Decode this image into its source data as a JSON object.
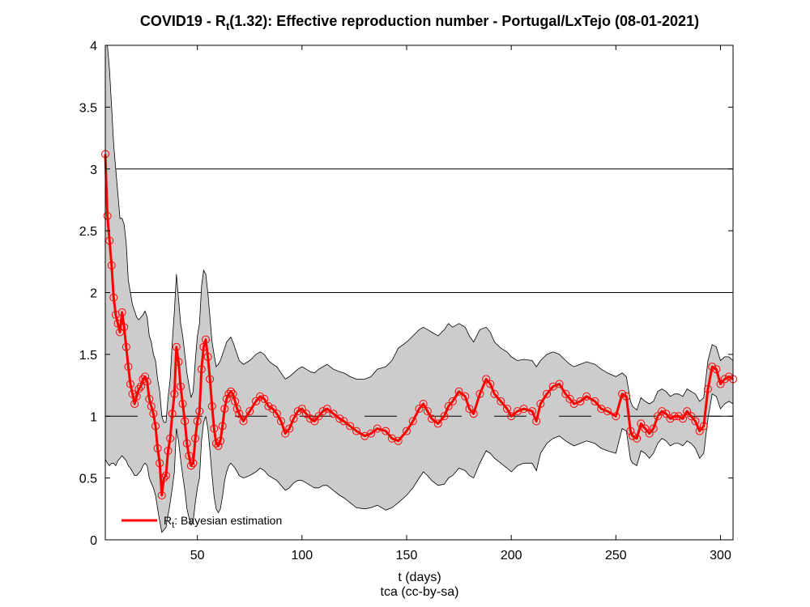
{
  "chart_data": {
    "type": "line",
    "title_prefix": "COVID19 - R",
    "title_sub": "t",
    "title_suffix": "(1.32): Effective reproduction number - Portugal/LxTejo (08-01-2021)",
    "xlabel": "t (days)",
    "caption": "tca (cc-by-sa)",
    "xlim": [
      6,
      306
    ],
    "ylim": [
      0,
      4
    ],
    "xticks": [
      50,
      100,
      150,
      200,
      250,
      300
    ],
    "yticks": [
      0,
      0.5,
      1,
      1.5,
      2,
      2.5,
      3,
      3.5,
      4
    ],
    "xtick_labels": [
      "50",
      "100",
      "150",
      "200",
      "250",
      "300"
    ],
    "ytick_labels": [
      "0",
      "0.5",
      "1",
      "1.5",
      "2",
      "2.5",
      "3",
      "3.5",
      "4"
    ],
    "ygrid": [
      1,
      2,
      3
    ],
    "legend": {
      "position": "bottom-left",
      "label_main": "R",
      "label_sub": "t",
      "label_rest": ": Bayesian estimation"
    },
    "colors": {
      "estimate": "#ff0000",
      "band": "#cccccc",
      "band_edge": "#000000"
    },
    "series": [
      {
        "name": "Rt: Bayesian estimation",
        "x": [
          6,
          7,
          8,
          9,
          10,
          11,
          12,
          13,
          14,
          15,
          16,
          17,
          18,
          19,
          20,
          21,
          22,
          23,
          24,
          25,
          26,
          27,
          28,
          29,
          30,
          31,
          32,
          33,
          34,
          35,
          36,
          37,
          38,
          39,
          40,
          41,
          42,
          43,
          44,
          45,
          46,
          47,
          48,
          49,
          50,
          51,
          52,
          53,
          54,
          55,
          56,
          57,
          58,
          59,
          60,
          61,
          62,
          63,
          64,
          65,
          66,
          67,
          68,
          69,
          70,
          72,
          75,
          78,
          80,
          82,
          84,
          86,
          88,
          90,
          92,
          94,
          96,
          98,
          100,
          102,
          104,
          106,
          108,
          110,
          112,
          115,
          118,
          120,
          123,
          126,
          130,
          133,
          136,
          140,
          143,
          146,
          150,
          153,
          156,
          158,
          160,
          162,
          165,
          168,
          170,
          172,
          175,
          178,
          180,
          182,
          185,
          188,
          190,
          192,
          195,
          198,
          200,
          203,
          206,
          210,
          212,
          214,
          217,
          220,
          223,
          226,
          228,
          230,
          233,
          236,
          240,
          243,
          246,
          250,
          253,
          255,
          257,
          258,
          260,
          262,
          264,
          266,
          268,
          270,
          272,
          274,
          276,
          278,
          280,
          282,
          284,
          286,
          288,
          290,
          292,
          294,
          296,
          298,
          300,
          302,
          304,
          306
        ],
        "y": [
          3.12,
          2.62,
          2.42,
          2.22,
          1.96,
          1.82,
          1.75,
          1.68,
          1.84,
          1.72,
          1.56,
          1.4,
          1.26,
          1.18,
          1.1,
          1.16,
          1.22,
          1.24,
          1.3,
          1.32,
          1.28,
          1.14,
          1.08,
          1.02,
          0.92,
          0.74,
          0.62,
          0.36,
          0.5,
          0.52,
          0.72,
          0.82,
          1.02,
          1.18,
          1.56,
          1.44,
          1.24,
          1.1,
          0.96,
          0.78,
          0.68,
          0.6,
          0.62,
          0.82,
          0.96,
          1.04,
          1.38,
          1.56,
          1.62,
          1.48,
          1.3,
          1.08,
          0.9,
          0.78,
          0.76,
          0.8,
          0.92,
          1.06,
          1.14,
          1.18,
          1.2,
          1.18,
          1.12,
          1.06,
          1.02,
          0.96,
          1.04,
          1.12,
          1.16,
          1.14,
          1.08,
          1.06,
          1.02,
          0.96,
          0.86,
          0.9,
          0.98,
          1.04,
          1.06,
          1.02,
          0.98,
          0.96,
          1.0,
          1.04,
          1.06,
          1.02,
          0.98,
          0.96,
          0.92,
          0.88,
          0.84,
          0.86,
          0.9,
          0.88,
          0.82,
          0.8,
          0.88,
          0.96,
          1.06,
          1.1,
          1.04,
          0.98,
          0.94,
          1.0,
          1.08,
          1.12,
          1.2,
          1.16,
          1.06,
          1.02,
          1.18,
          1.3,
          1.26,
          1.18,
          1.12,
          1.06,
          1.0,
          1.04,
          1.06,
          1.04,
          0.96,
          1.1,
          1.18,
          1.24,
          1.26,
          1.18,
          1.14,
          1.1,
          1.12,
          1.16,
          1.12,
          1.06,
          1.04,
          1.0,
          1.18,
          1.16,
          0.88,
          0.84,
          0.82,
          0.94,
          0.9,
          0.86,
          0.9,
          1.0,
          1.04,
          1.02,
          0.98,
          1.0,
          1.0,
          0.98,
          1.04,
          1.0,
          0.96,
          0.88,
          0.92,
          1.22,
          1.4,
          1.38,
          1.26,
          1.3,
          1.32,
          1.3
        ],
        "upper": [
          4.0,
          4.0,
          3.8,
          3.5,
          3.2,
          3.0,
          2.8,
          2.6,
          2.6,
          2.55,
          2.4,
          2.1,
          2.0,
          1.9,
          1.85,
          1.8,
          1.78,
          1.8,
          1.82,
          1.85,
          1.8,
          1.65,
          1.6,
          1.5,
          1.45,
          1.3,
          1.2,
          1.0,
          0.95,
          0.95,
          1.15,
          1.3,
          1.6,
          1.85,
          2.15,
          1.95,
          1.75,
          1.65,
          1.5,
          1.35,
          1.25,
          1.15,
          1.2,
          1.45,
          1.65,
          1.75,
          2.05,
          2.18,
          2.15,
          2.0,
          1.8,
          1.6,
          1.5,
          1.4,
          1.42,
          1.45,
          1.5,
          1.55,
          1.6,
          1.62,
          1.64,
          1.6,
          1.55,
          1.5,
          1.45,
          1.42,
          1.45,
          1.5,
          1.52,
          1.5,
          1.45,
          1.42,
          1.4,
          1.35,
          1.3,
          1.32,
          1.35,
          1.38,
          1.4,
          1.38,
          1.36,
          1.35,
          1.38,
          1.4,
          1.42,
          1.38,
          1.36,
          1.35,
          1.32,
          1.3,
          1.3,
          1.32,
          1.38,
          1.4,
          1.45,
          1.55,
          1.6,
          1.65,
          1.7,
          1.72,
          1.7,
          1.68,
          1.65,
          1.7,
          1.75,
          1.72,
          1.75,
          1.72,
          1.65,
          1.6,
          1.7,
          1.72,
          1.68,
          1.6,
          1.55,
          1.52,
          1.48,
          1.45,
          1.46,
          1.45,
          1.4,
          1.45,
          1.5,
          1.52,
          1.5,
          1.45,
          1.42,
          1.4,
          1.42,
          1.44,
          1.42,
          1.38,
          1.35,
          1.32,
          1.35,
          1.32,
          1.12,
          1.08,
          1.05,
          1.15,
          1.12,
          1.1,
          1.12,
          1.2,
          1.22,
          1.2,
          1.16,
          1.18,
          1.18,
          1.16,
          1.22,
          1.2,
          1.18,
          1.12,
          1.15,
          1.45,
          1.58,
          1.56,
          1.45,
          1.48,
          1.48,
          1.45
        ],
        "lower": [
          0.65,
          0.62,
          0.6,
          0.62,
          0.62,
          0.6,
          0.64,
          0.66,
          0.68,
          0.66,
          0.64,
          0.6,
          0.58,
          0.55,
          0.52,
          0.52,
          0.54,
          0.56,
          0.6,
          0.62,
          0.6,
          0.5,
          0.46,
          0.42,
          0.36,
          0.25,
          0.15,
          0.06,
          0.08,
          0.1,
          0.2,
          0.3,
          0.42,
          0.55,
          0.9,
          0.8,
          0.65,
          0.52,
          0.4,
          0.25,
          0.18,
          0.12,
          0.15,
          0.3,
          0.42,
          0.5,
          0.8,
          0.95,
          1.0,
          0.9,
          0.72,
          0.52,
          0.35,
          0.25,
          0.22,
          0.25,
          0.35,
          0.48,
          0.55,
          0.6,
          0.62,
          0.6,
          0.58,
          0.55,
          0.52,
          0.5,
          0.52,
          0.55,
          0.58,
          0.56,
          0.52,
          0.5,
          0.48,
          0.44,
          0.4,
          0.42,
          0.46,
          0.48,
          0.48,
          0.46,
          0.44,
          0.42,
          0.42,
          0.44,
          0.44,
          0.4,
          0.36,
          0.34,
          0.3,
          0.26,
          0.25,
          0.26,
          0.28,
          0.24,
          0.26,
          0.3,
          0.36,
          0.42,
          0.5,
          0.55,
          0.52,
          0.48,
          0.44,
          0.45,
          0.5,
          0.52,
          0.58,
          0.56,
          0.52,
          0.5,
          0.62,
          0.72,
          0.7,
          0.66,
          0.62,
          0.58,
          0.55,
          0.6,
          0.62,
          0.62,
          0.56,
          0.7,
          0.78,
          0.82,
          0.84,
          0.8,
          0.78,
          0.76,
          0.78,
          0.8,
          0.78,
          0.74,
          0.72,
          0.7,
          0.9,
          0.88,
          0.65,
          0.62,
          0.6,
          0.72,
          0.7,
          0.66,
          0.7,
          0.78,
          0.82,
          0.8,
          0.76,
          0.78,
          0.78,
          0.76,
          0.8,
          0.78,
          0.74,
          0.66,
          0.7,
          0.98,
          1.18,
          1.16,
          1.06,
          1.1,
          1.12,
          1.1
        ]
      }
    ]
  }
}
